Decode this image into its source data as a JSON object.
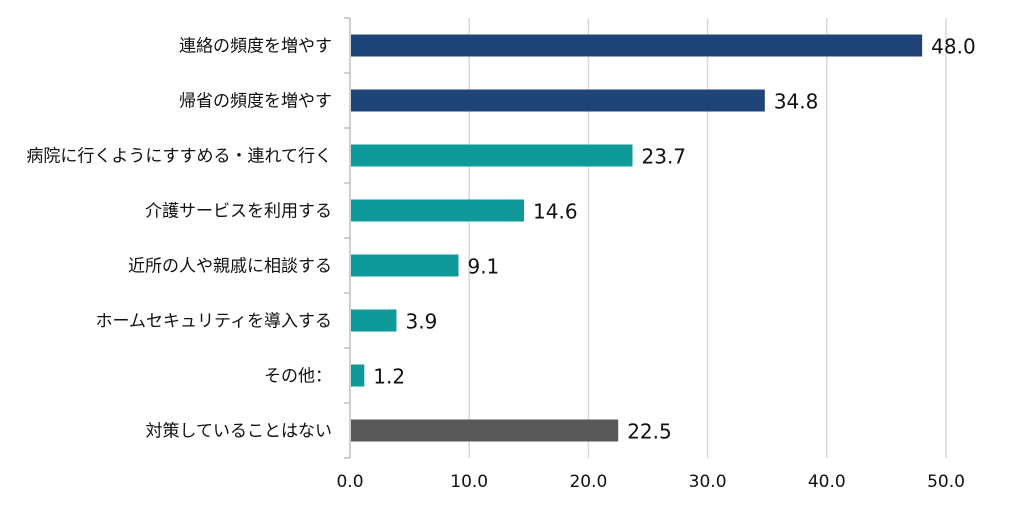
{
  "chart_data": {
    "type": "bar",
    "orientation": "horizontal",
    "categories": [
      "連絡の頻度を増やす",
      "帰省の頻度を増やす",
      "病院に行くようにすすめる・連れて行く",
      "介護サービスを利用する",
      "近所の人や親戚に相談する",
      "ホームセキュリティを導入する",
      "その他：",
      "対策していることはない"
    ],
    "values": [
      48.0,
      34.8,
      23.7,
      14.6,
      9.1,
      3.9,
      1.2,
      22.5
    ],
    "value_labels": [
      "48.0",
      "34.8",
      "23.7",
      "14.6",
      "9.1",
      "3.9",
      "1.2",
      "22.5"
    ],
    "bar_colors": [
      "#1f4478",
      "#1f4478",
      "#0f9a9a",
      "#0f9a9a",
      "#0f9a9a",
      "#0f9a9a",
      "#0f9a9a",
      "#595959"
    ],
    "xlim": [
      0,
      50
    ],
    "x_ticks": [
      "0.0",
      "10.0",
      "20.0",
      "30.0",
      "40.0",
      "50.0"
    ],
    "grid": true,
    "gridline_color": "#d9d9d9",
    "axis_line_color": "#bfbfbf",
    "title": "",
    "xlabel": "",
    "ylabel": "",
    "legend": "none"
  }
}
